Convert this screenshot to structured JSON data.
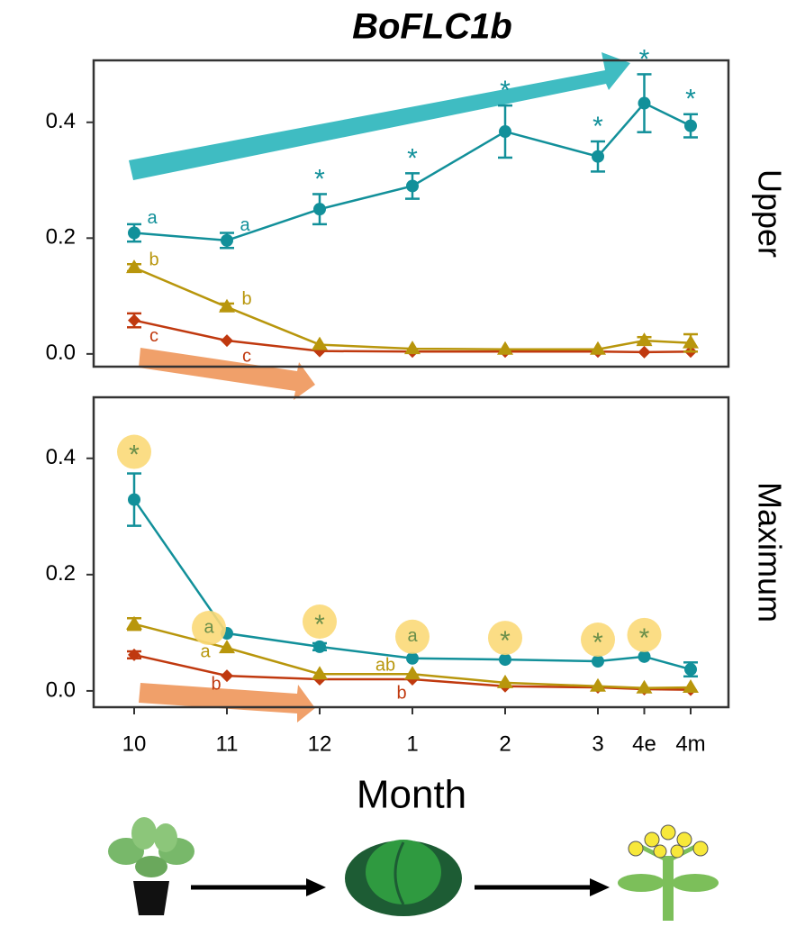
{
  "chart_data": [
    {
      "type": "line",
      "title": "BoFLC1b",
      "panel": "Upper",
      "ylim": [
        -0.022,
        0.507
      ],
      "yticks": [
        {
          "value": 0,
          "label": "0.0"
        },
        0.2,
        0.4
      ],
      "series": [
        {
          "color": "#12909a",
          "marker": "circle",
          "values": [
            0.209,
            0.196,
            0.25,
            0.29,
            0.384,
            0.341,
            0.433,
            0.394
          ],
          "errors": [
            0.015,
            0.013,
            0.026,
            0.022,
            0.045,
            0.026,
            0.05,
            0.02
          ],
          "labels": [
            "a",
            "a",
            "*",
            "*",
            "*",
            "*",
            "*",
            "*"
          ]
        },
        {
          "color": "#b8960c",
          "marker": "triangle",
          "values": [
            0.149,
            0.081,
            0.016,
            0.009,
            0.008,
            0.008,
            0.023,
            0.019
          ],
          "errors": [
            0.006,
            0.006,
            null,
            null,
            null,
            null,
            0.006,
            0.015
          ],
          "labels": [
            "b",
            "b",
            null,
            null,
            null,
            null,
            null,
            null
          ]
        },
        {
          "color": "#c0390f",
          "marker": "diamond",
          "values": [
            0.058,
            0.023,
            0.005,
            0.004,
            0.004,
            0.004,
            0.003,
            0.004
          ],
          "errors": [
            0.012,
            null,
            null,
            null,
            null,
            null,
            null,
            null
          ],
          "labels": [
            "c",
            "c",
            null,
            null,
            null,
            null,
            null,
            null
          ]
        }
      ]
    },
    {
      "type": "line",
      "panel": "Maximum",
      "xlabel": "Month",
      "categories": [
        "10",
        "11",
        "12",
        "1",
        "2",
        "3",
        "4e",
        "4m"
      ],
      "ylim": [
        -0.028,
        0.505
      ],
      "yticks": [
        {
          "value": 0,
          "label": "0.0"
        },
        0.2,
        0.4
      ],
      "series": [
        {
          "color": "#12909a",
          "marker": "circle",
          "values": [
            0.329,
            0.099,
            0.076,
            0.056,
            0.054,
            0.051,
            0.059,
            0.037
          ],
          "errors": [
            0.045,
            null,
            0.006,
            null,
            null,
            null,
            null,
            0.012
          ],
          "labels": [
            "*",
            "a",
            "*",
            "a",
            "*",
            "*",
            "*",
            null
          ]
        },
        {
          "color": "#b8960c",
          "marker": "triangle",
          "values": [
            0.115,
            0.074,
            0.029,
            0.029,
            0.014,
            0.008,
            0.005,
            0.006
          ],
          "errors": [
            0.01,
            null,
            null,
            null,
            null,
            null,
            null,
            null
          ],
          "labels": [
            null,
            "a",
            null,
            "ab",
            null,
            null,
            null,
            null
          ]
        },
        {
          "color": "#c0390f",
          "marker": "diamond",
          "values": [
            0.062,
            0.026,
            0.02,
            0.02,
            0.008,
            0.006,
            0.003,
            0.002
          ],
          "errors": [
            0.006,
            null,
            null,
            null,
            null,
            null,
            null,
            null
          ],
          "labels": [
            null,
            "b",
            null,
            "b",
            null,
            null,
            null,
            null
          ]
        }
      ]
    }
  ]
}
